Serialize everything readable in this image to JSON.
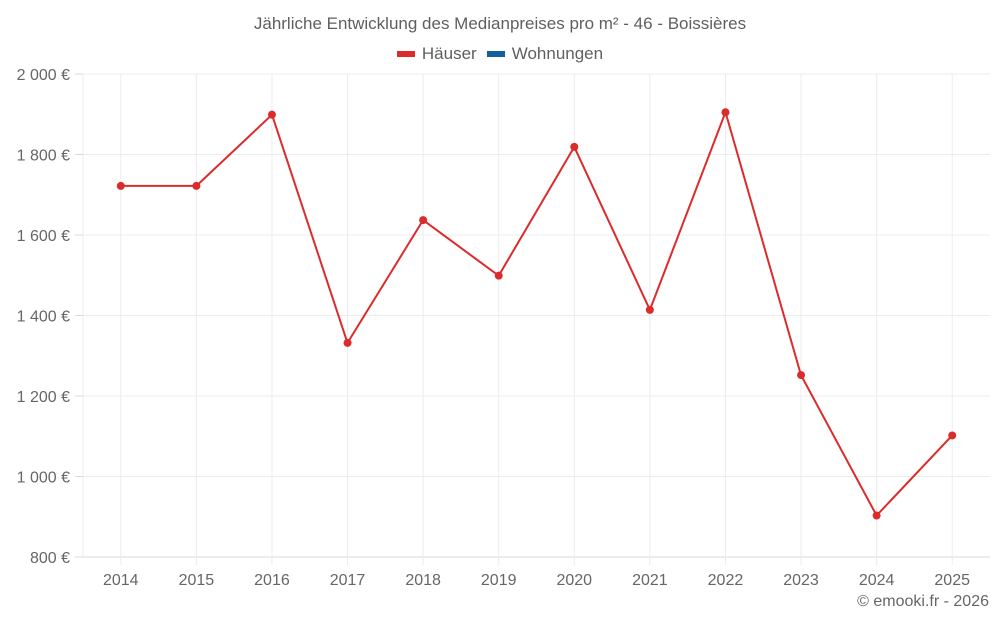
{
  "title": "Jährliche Entwicklung des Medianpreises pro m² - 46 - Boissières",
  "legend": [
    {
      "label": "Häuser",
      "color": "#dc2b2b"
    },
    {
      "label": "Wohnungen",
      "color": "#14609e"
    }
  ],
  "credit": "© emooki.fr - 2026",
  "y_tick_labels": [
    "2 000 €",
    "1 800 €",
    "1 600 €",
    "1 400 €",
    "1 200 €",
    "1 000 €",
    "800 €"
  ],
  "chart_data": {
    "type": "line",
    "title": "Jährliche Entwicklung des Medianpreises pro m² - 46 - Boissières",
    "xlabel": "",
    "ylabel": "",
    "categories": [
      "2014",
      "2015",
      "2016",
      "2017",
      "2018",
      "2019",
      "2020",
      "2021",
      "2022",
      "2023",
      "2024",
      "2025"
    ],
    "series": [
      {
        "name": "Häuser",
        "color": "#dc2b2b",
        "values": [
          1722,
          1722,
          1899,
          1332,
          1637,
          1499,
          1819,
          1414,
          1905,
          1252,
          903,
          1102
        ]
      },
      {
        "name": "Wohnungen",
        "color": "#14609e",
        "values": []
      }
    ],
    "ylim": [
      800,
      2000
    ],
    "yticks": [
      800,
      1000,
      1200,
      1400,
      1600,
      1800,
      2000
    ],
    "grid": true,
    "legend_position": "top"
  }
}
